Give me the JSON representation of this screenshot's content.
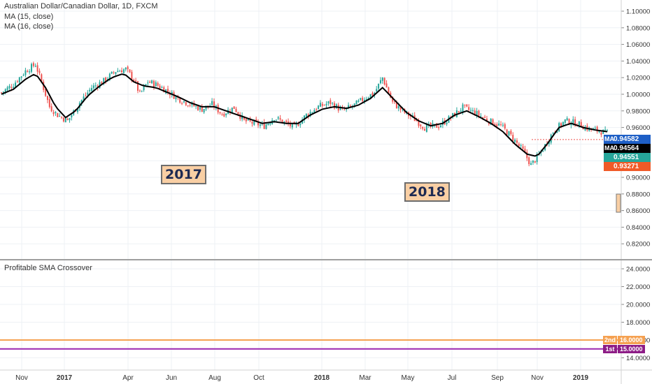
{
  "header": {
    "title": "Australian Dollar/Canadian Dollar, 1D, FXCM",
    "ma1": "MA (15, close)",
    "ma2": "MA (16, close)"
  },
  "annotations": {
    "year1": "2017",
    "year2": "2018"
  },
  "indicator": {
    "title": "Profitable SMA Crossover"
  },
  "price_tags": [
    {
      "label": "0.94582",
      "prefix": "MA",
      "color": "#1e5fc6"
    },
    {
      "label": "0.94564",
      "prefix": "MA",
      "color": "#000000"
    },
    {
      "label": "0.94551",
      "prefix": "",
      "color": "#26a69a"
    },
    {
      "label": "0.93271",
      "prefix": "",
      "color": "#f05a28"
    }
  ],
  "level_tags": [
    {
      "prefix": "2nd",
      "label": "16.0000",
      "color": "#f5a151"
    },
    {
      "prefix": "1st",
      "label": "15.0000",
      "color": "#8d1c86"
    }
  ],
  "colors": {
    "up": "#26a69a",
    "down": "#ef5350",
    "ma": "#000000",
    "line_2nd": "#f5a151",
    "line_1st": "#9c27b0"
  },
  "chart_data": [
    {
      "type": "candlestick",
      "title": "Australian Dollar/Canadian Dollar, 1D, FXCM",
      "x_tick_labels": [
        "Nov",
        "2017",
        "Apr",
        "Jun",
        "Aug",
        "Oct",
        "2018",
        "Mar",
        "May",
        "Jul",
        "Sep",
        "Nov",
        "2019"
      ],
      "y_tick_labels": [
        "1.10000",
        "1.08000",
        "1.06000",
        "1.04000",
        "1.02000",
        "1.00000",
        "0.98000",
        "0.96000",
        "0.94000",
        "0.92000",
        "0.90000",
        "0.88000",
        "0.86000",
        "0.84000",
        "0.82000"
      ],
      "ylim": [
        0.805,
        1.112
      ],
      "close_path": [
        [
          0,
          1.002
        ],
        [
          6,
          1.012
        ],
        [
          12,
          1.028
        ],
        [
          17,
          1.036
        ],
        [
          20,
          1.015
        ],
        [
          24,
          0.985
        ],
        [
          28,
          0.975
        ],
        [
          33,
          0.968
        ],
        [
          39,
          0.99
        ],
        [
          45,
          1.008
        ],
        [
          51,
          1.016
        ],
        [
          57,
          1.028
        ],
        [
          62,
          1.03
        ],
        [
          66,
          1.018
        ],
        [
          69,
          1.0
        ],
        [
          73,
          1.015
        ],
        [
          77,
          1.012
        ],
        [
          82,
          1.005
        ],
        [
          88,
          0.995
        ],
        [
          94,
          0.988
        ],
        [
          100,
          0.982
        ],
        [
          105,
          0.988
        ],
        [
          110,
          0.976
        ],
        [
          116,
          0.984
        ],
        [
          121,
          0.968
        ],
        [
          126,
          0.965
        ],
        [
          131,
          0.962
        ],
        [
          136,
          0.972
        ],
        [
          141,
          0.966
        ],
        [
          146,
          0.96
        ],
        [
          152,
          0.975
        ],
        [
          158,
          0.985
        ],
        [
          164,
          0.99
        ],
        [
          170,
          0.98
        ],
        [
          176,
          0.987
        ],
        [
          181,
          0.995
        ],
        [
          186,
          1.002
        ],
        [
          190,
          1.02
        ],
        [
          195,
          0.99
        ],
        [
          200,
          0.98
        ],
        [
          206,
          0.97
        ],
        [
          211,
          0.96
        ],
        [
          218,
          0.962
        ],
        [
          224,
          0.972
        ],
        [
          230,
          0.984
        ],
        [
          236,
          0.978
        ],
        [
          243,
          0.968
        ],
        [
          249,
          0.962
        ],
        [
          254,
          0.95
        ],
        [
          260,
          0.932
        ],
        [
          264,
          0.915
        ],
        [
          269,
          0.93
        ],
        [
          275,
          0.955
        ],
        [
          281,
          0.968
        ],
        [
          287,
          0.965
        ],
        [
          293,
          0.958
        ],
        [
          298,
          0.956
        ],
        [
          302,
          0.953
        ]
      ],
      "ma_path": [
        [
          0,
          1.0
        ],
        [
          6,
          1.006
        ],
        [
          12,
          1.018
        ],
        [
          17,
          1.025
        ],
        [
          22,
          1.008
        ],
        [
          27,
          0.985
        ],
        [
          32,
          0.972
        ],
        [
          37,
          0.98
        ],
        [
          43,
          0.998
        ],
        [
          49,
          1.01
        ],
        [
          55,
          1.02
        ],
        [
          61,
          1.025
        ],
        [
          66,
          1.015
        ],
        [
          71,
          1.01
        ],
        [
          77,
          1.008
        ],
        [
          82,
          1.003
        ],
        [
          88,
          0.997
        ],
        [
          94,
          0.99
        ],
        [
          100,
          0.985
        ],
        [
          106,
          0.985
        ],
        [
          112,
          0.98
        ],
        [
          118,
          0.975
        ],
        [
          124,
          0.97
        ],
        [
          130,
          0.965
        ],
        [
          136,
          0.967
        ],
        [
          142,
          0.965
        ],
        [
          148,
          0.965
        ],
        [
          154,
          0.975
        ],
        [
          160,
          0.982
        ],
        [
          166,
          0.985
        ],
        [
          172,
          0.983
        ],
        [
          178,
          0.987
        ],
        [
          184,
          0.995
        ],
        [
          190,
          1.008
        ],
        [
          196,
          0.993
        ],
        [
          202,
          0.978
        ],
        [
          208,
          0.968
        ],
        [
          214,
          0.962
        ],
        [
          220,
          0.965
        ],
        [
          226,
          0.975
        ],
        [
          232,
          0.98
        ],
        [
          238,
          0.973
        ],
        [
          244,
          0.965
        ],
        [
          250,
          0.955
        ],
        [
          256,
          0.94
        ],
        [
          262,
          0.928
        ],
        [
          267,
          0.925
        ],
        [
          272,
          0.94
        ],
        [
          278,
          0.96
        ],
        [
          284,
          0.965
        ],
        [
          290,
          0.96
        ],
        [
          296,
          0.957
        ],
        [
          302,
          0.955
        ]
      ],
      "last_close": 0.94551
    },
    {
      "type": "line",
      "title": "Profitable SMA Crossover",
      "y_tick_labels": [
        "24.0000",
        "22.0000",
        "20.0000",
        "18.0000",
        "16.0000",
        "14.0000"
      ],
      "ylim": [
        13.0,
        25.0
      ],
      "series": [
        {
          "name": "2nd",
          "values": [
            16.0
          ]
        },
        {
          "name": "1st",
          "values": [
            15.0
          ]
        }
      ]
    }
  ]
}
